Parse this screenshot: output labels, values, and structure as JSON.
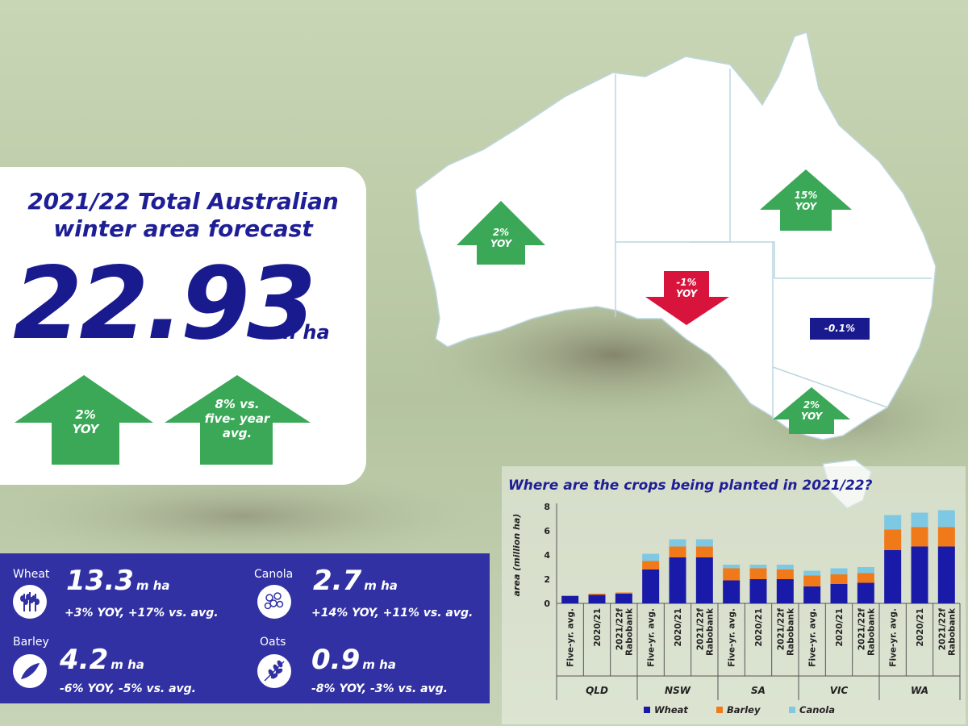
{
  "summary": {
    "title_line1": "2021/22 Total Australian",
    "title_line2": "winter area forecast",
    "total_value": "22.93",
    "total_unit": "m ha",
    "yoy_line1": "2%",
    "yoy_line2": "YOY",
    "avg_line1": "8% vs.",
    "avg_line2": "five- year",
    "avg_line3": "avg."
  },
  "map": {
    "wa": {
      "line1": "2%",
      "line2": "YOY",
      "direction": "up",
      "color": "#3aa857"
    },
    "qld": {
      "line1": "15%",
      "line2": "YOY",
      "direction": "up",
      "color": "#3aa857"
    },
    "sa": {
      "line1": "-1%",
      "line2": "YOY",
      "direction": "down",
      "color": "#d9143c"
    },
    "nsw": {
      "label": "-0.1%",
      "color": "#1a1a8f"
    },
    "vic": {
      "line1": "2%",
      "line2": "YOY",
      "direction": "up",
      "color": "#3aa857"
    }
  },
  "crops": [
    {
      "name": "Wheat",
      "value": "13.3",
      "unit": "m ha",
      "delta": "+3% YOY, +17% vs. avg.",
      "icon": "wheat-icon"
    },
    {
      "name": "Canola",
      "value": "2.7",
      "unit": "m ha",
      "delta": "+14% YOY, +11% vs. avg.",
      "icon": "canola-icon"
    },
    {
      "name": "Barley",
      "value": "4.2",
      "unit": "m ha",
      "delta": "-6% YOY, -5% vs. avg.",
      "icon": "barley-icon"
    },
    {
      "name": "Oats",
      "value": "0.9",
      "unit": "m ha",
      "delta": "-8% YOY, -3% vs. avg.",
      "icon": "oats-icon"
    }
  ],
  "chart_data": {
    "type": "bar",
    "stacked": true,
    "title": "Where are the crops being planted in 2021/22?",
    "ylabel": "area (million ha)",
    "ylim": [
      0,
      8
    ],
    "yticks": [
      0,
      2,
      4,
      6,
      8
    ],
    "groups": [
      "QLD",
      "NSW",
      "SA",
      "VIC",
      "WA"
    ],
    "categories": [
      "Five-yr. avg.",
      "2020/21",
      "2021/22f Rabobank"
    ],
    "category_lines": [
      [
        "Five-yr. avg."
      ],
      [
        "2020/21"
      ],
      [
        "2021/22f",
        "Rabobank"
      ]
    ],
    "series": [
      {
        "name": "Wheat",
        "color": "#1a1aa8",
        "values": [
          [
            0.6,
            0.7,
            0.8
          ],
          [
            2.8,
            3.8,
            3.8
          ],
          [
            1.9,
            2.0,
            2.0
          ],
          [
            1.4,
            1.6,
            1.7
          ],
          [
            4.4,
            4.7,
            4.7
          ]
        ]
      },
      {
        "name": "Barley",
        "color": "#f07a1a",
        "values": [
          [
            0.05,
            0.1,
            0.1
          ],
          [
            0.7,
            0.9,
            0.9
          ],
          [
            1.0,
            0.9,
            0.8
          ],
          [
            0.9,
            0.8,
            0.8
          ],
          [
            1.7,
            1.6,
            1.6
          ]
        ]
      },
      {
        "name": "Canola",
        "color": "#7ec8e3",
        "values": [
          [
            0.0,
            0.0,
            0.0
          ],
          [
            0.6,
            0.6,
            0.6
          ],
          [
            0.3,
            0.3,
            0.4
          ],
          [
            0.4,
            0.5,
            0.5
          ],
          [
            1.2,
            1.2,
            1.4
          ]
        ]
      }
    ],
    "legend": "bottom"
  }
}
